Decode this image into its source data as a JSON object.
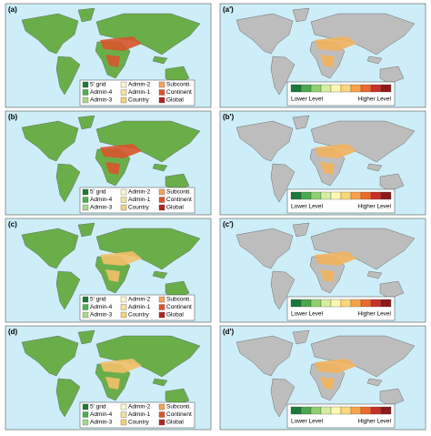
{
  "panels_left": [
    {
      "label": "(a)"
    },
    {
      "label": "(b)"
    },
    {
      "label": "(c)"
    },
    {
      "label": "(d)"
    }
  ],
  "panels_right": [
    {
      "label": "(a')"
    },
    {
      "label": "(b')"
    },
    {
      "label": "(c')"
    },
    {
      "label": "(d')"
    }
  ],
  "legend": [
    {
      "label": "5' grid",
      "color": "#1f7a33"
    },
    {
      "label": "Admin-4",
      "color": "#4caf50"
    },
    {
      "label": "Admin-3",
      "color": "#a8d88a"
    },
    {
      "label": "Admin-2",
      "color": "#fbf6cf"
    },
    {
      "label": "Admin-1",
      "color": "#f2e3a0"
    },
    {
      "label": "Country",
      "color": "#f3d27a"
    },
    {
      "label": "Subconti.",
      "color": "#f2a45e"
    },
    {
      "label": "Continent",
      "color": "#e0522a"
    },
    {
      "label": "Global",
      "color": "#b22222"
    }
  ],
  "colorbar": {
    "colors": [
      "#1a7a3a",
      "#4aa84f",
      "#8fcf6e",
      "#d6eda0",
      "#fff7b0",
      "#fdd57a",
      "#f9a24a",
      "#ec6a2c",
      "#c8302a",
      "#8b1a1a"
    ],
    "low_label": "Lower Level",
    "high_label": "Higher Level"
  }
}
